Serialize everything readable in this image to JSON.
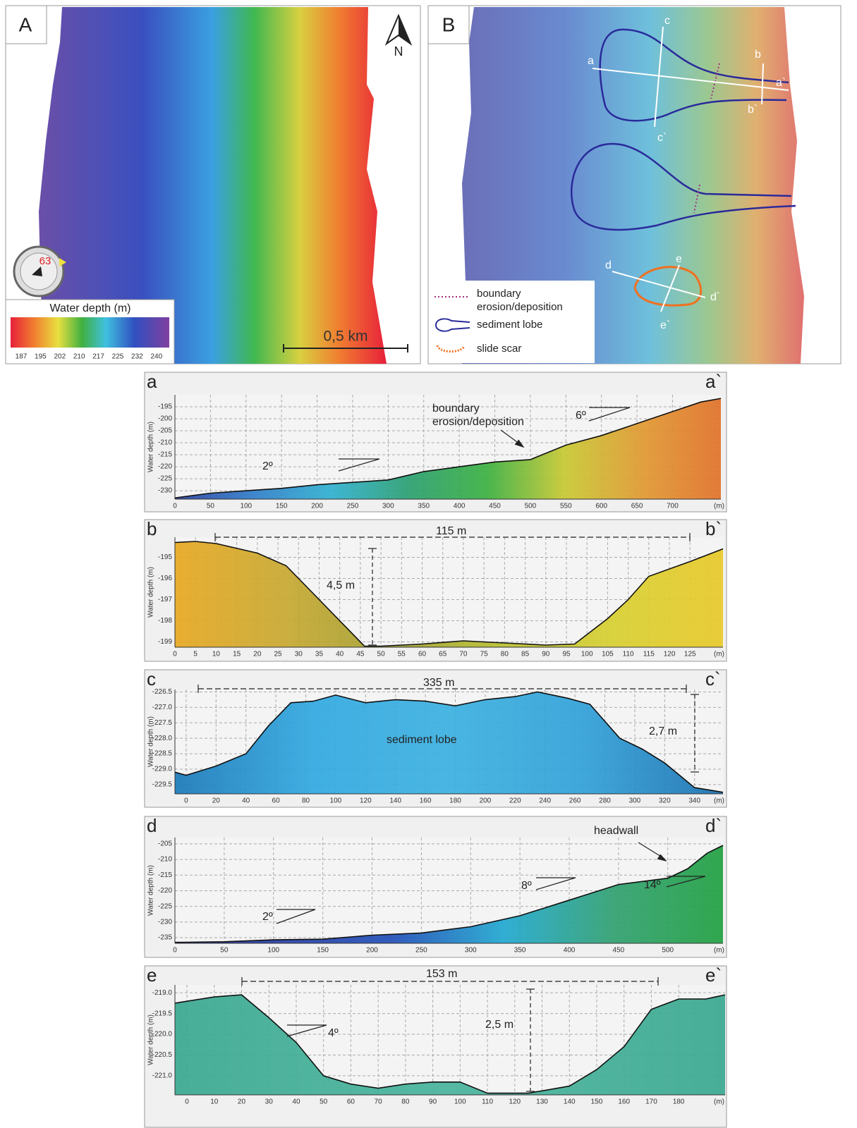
{
  "map_a": {
    "label": "A",
    "north": "N",
    "compass_value": 63,
    "colorbar_title": "Water depth (m)",
    "colorbar_ticks": [
      187,
      195,
      202,
      210,
      217,
      225,
      232,
      240
    ],
    "scale_bar": "0,5 km"
  },
  "map_b": {
    "label": "B",
    "profile_labels": [
      "a",
      "a`",
      "b",
      "b`",
      "c",
      "c`",
      "d",
      "d`",
      "e",
      "e`"
    ],
    "legend": [
      "boundary",
      "erosion/deposition",
      "sediment lobe",
      "slide scar"
    ]
  },
  "chart_data": [
    {
      "type": "area",
      "start_label": "a",
      "end_label": "a`",
      "y_label": "Water depth (m)",
      "x_unit": "(m)",
      "x": [
        0,
        50,
        100,
        150,
        200,
        250,
        300,
        350,
        400,
        450,
        500,
        550,
        600,
        650,
        700,
        740,
        768
      ],
      "values": [
        -233,
        -231,
        -230,
        -229,
        -227.5,
        -226.5,
        -225.5,
        -222,
        -220,
        -218,
        -217,
        -211,
        -207,
        -202,
        -197,
        -193,
        -191.5
      ],
      "xlim": [
        0,
        768
      ],
      "ylim": [
        -233.5,
        -190
      ],
      "xticks": [
        0,
        50,
        100,
        150,
        200,
        250,
        300,
        350,
        400,
        450,
        500,
        550,
        600,
        650,
        700
      ],
      "yticks": [
        -195,
        -200,
        -205,
        -210,
        -215,
        -220,
        -225,
        -230
      ],
      "grid": true,
      "colors": [
        "#2a3fa0",
        "#2f7cc8",
        "#2fb0d0",
        "#2a9f70",
        "#3ab040",
        "#c8c830",
        "#e09830",
        "#e07028"
      ],
      "annotations": [
        "boundary",
        "erosion/deposition",
        "2º",
        "6º"
      ]
    },
    {
      "type": "area",
      "start_label": "b",
      "end_label": "b`",
      "y_label": "Water depth (m)",
      "x_unit": "(m)",
      "x": [
        0,
        5,
        10,
        20,
        27,
        35,
        46,
        50,
        60,
        70,
        80,
        90,
        97,
        105,
        110,
        115,
        125,
        133
      ],
      "values": [
        -194.3,
        -194.25,
        -194.35,
        -194.8,
        -195.4,
        -197,
        -199.2,
        -199.2,
        -199.1,
        -198.95,
        -199.05,
        -199.15,
        -199.1,
        -197.9,
        -197,
        -195.9,
        -195.2,
        -194.6
      ],
      "xlim": [
        0,
        133
      ],
      "ylim": [
        -199.25,
        -194.05
      ],
      "xticks": [
        0,
        5,
        10,
        15,
        20,
        25,
        30,
        35,
        40,
        45,
        50,
        55,
        60,
        65,
        70,
        75,
        80,
        85,
        90,
        95,
        100,
        105,
        110,
        115,
        120,
        125
      ],
      "yticks": [
        -195,
        -196,
        -197,
        -198,
        -199
      ],
      "grid": true,
      "colors": [
        "#e8a820",
        "#c8a830",
        "#a0a030",
        "#b8c030",
        "#d8d030",
        "#e8c828"
      ],
      "annotations": [
        "115 m",
        "4,5 m"
      ]
    },
    {
      "type": "area",
      "start_label": "c",
      "end_label": "c`",
      "y_label": "Water depth (m)",
      "x_unit": "(m)",
      "x": [
        -7.5,
        0,
        20,
        40,
        55,
        70,
        85,
        100,
        120,
        140,
        160,
        180,
        200,
        220,
        235,
        255,
        270,
        290,
        305,
        320,
        340,
        359
      ],
      "values": [
        -229.1,
        -229.2,
        -228.9,
        -228.5,
        -227.6,
        -226.85,
        -226.8,
        -226.6,
        -226.85,
        -226.75,
        -226.8,
        -226.95,
        -226.75,
        -226.65,
        -226.5,
        -226.7,
        -226.9,
        -228,
        -228.35,
        -228.8,
        -229.6,
        -229.75
      ],
      "xlim": [
        -7.5,
        359
      ],
      "ylim": [
        -229.8,
        -226.42
      ],
      "xticks": [
        0,
        20,
        40,
        60,
        80,
        100,
        120,
        140,
        160,
        180,
        200,
        220,
        240,
        260,
        280,
        300,
        320,
        340
      ],
      "yticks": [
        -226.5,
        {
          "value": -227,
          "label": "-227.0"
        },
        -227.5,
        {
          "value": -228,
          "label": "-228.0"
        },
        -228.5,
        {
          "value": -229,
          "label": "-229.0"
        },
        -229.5
      ],
      "grid": true,
      "colors": [
        "#1a78b8",
        "#30a8e0",
        "#3ab0e0",
        "#30a0d8",
        "#1a70b0"
      ],
      "annotations": [
        "335 m",
        "2,7 m",
        "sediment lobe"
      ]
    },
    {
      "type": "area",
      "start_label": "d",
      "end_label": "d`",
      "y_label": "Water depth (m)",
      "x_unit": "(m)",
      "x": [
        0,
        50,
        100,
        150,
        200,
        250,
        300,
        350,
        400,
        450,
        500,
        520,
        540,
        556
      ],
      "values": [
        -236.5,
        -236.3,
        -235.7,
        -235.5,
        -234.2,
        -233.5,
        -231.5,
        -228,
        -223,
        -218,
        -216,
        -213,
        -208,
        -205.5
      ],
      "xlim": [
        0,
        556
      ],
      "ylim": [
        -236.8,
        -203
      ],
      "xticks": [
        0,
        50,
        100,
        150,
        200,
        250,
        300,
        350,
        400,
        450,
        500
      ],
      "yticks": [
        -205,
        -210,
        -215,
        -220,
        -225,
        -230,
        -235
      ],
      "grid": true,
      "colors": [
        "#2030a0",
        "#2840a8",
        "#2050b8",
        "#20a8d0",
        "#30a070",
        "#20a040"
      ],
      "annotations": [
        "headwall",
        "2º",
        "8º",
        "14º"
      ]
    },
    {
      "type": "area",
      "start_label": "e",
      "end_label": "e`",
      "y_label": "Water depth (m)",
      "x_unit": "(m)",
      "x": [
        -4.4,
        10,
        20,
        30,
        40,
        50,
        60,
        70,
        80,
        90,
        100,
        110,
        125,
        140,
        150,
        160,
        170,
        180,
        190,
        197
      ],
      "values": [
        -219.25,
        -219.1,
        -219.05,
        -219.6,
        -220.2,
        -221,
        -221.2,
        -221.3,
        -221.2,
        -221.15,
        -221.15,
        -221.42,
        -221.42,
        -221.25,
        -220.85,
        -220.3,
        -219.4,
        -219.15,
        -219.15,
        -219.05
      ],
      "xlim": [
        -4.4,
        197
      ],
      "ylim": [
        -221.46,
        -218.81
      ],
      "xticks": [
        0,
        10,
        20,
        30,
        40,
        50,
        60,
        70,
        80,
        90,
        100,
        110,
        120,
        130,
        140,
        150,
        160,
        170,
        180
      ],
      "yticks": [
        {
          "value": -219,
          "label": "-219.0"
        },
        -219.5,
        {
          "value": -220,
          "label": "-220.0"
        },
        -220.5,
        {
          "value": -221,
          "label": "-221.0"
        }
      ],
      "grid": true,
      "colors": [
        "#3aa890",
        "#48b49c",
        "#3aa890"
      ],
      "annotations": [
        "153 m",
        "2,5 m",
        "4º"
      ]
    }
  ]
}
